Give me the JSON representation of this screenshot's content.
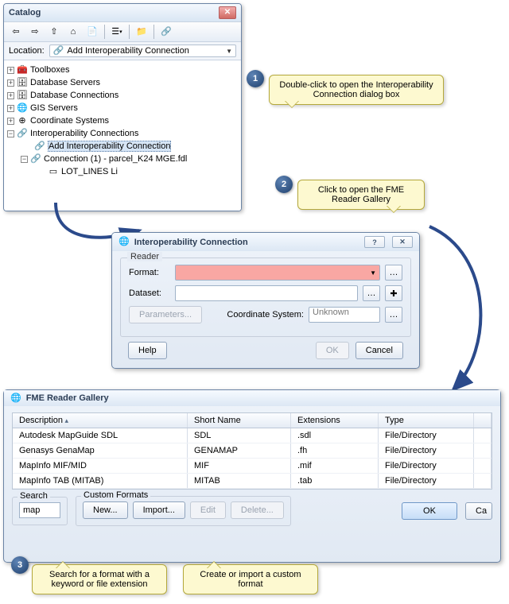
{
  "catalog": {
    "title": "Catalog",
    "location_label": "Location:",
    "location_value": "Add Interoperability Connection",
    "tree": [
      {
        "toggle": "+",
        "icon": "🧰",
        "label": "Toolboxes",
        "indent": 0
      },
      {
        "toggle": "+",
        "icon": "🗄",
        "label": "Database Servers",
        "indent": 0
      },
      {
        "toggle": "+",
        "icon": "🗄",
        "label": "Database Connections",
        "indent": 0
      },
      {
        "toggle": "+",
        "icon": "🌐",
        "label": "GIS Servers",
        "indent": 0
      },
      {
        "toggle": "+",
        "icon": "⊕",
        "label": "Coordinate Systems",
        "indent": 0
      },
      {
        "toggle": "−",
        "icon": "🔗",
        "label": "Interoperability Connections",
        "indent": 0
      },
      {
        "toggle": "",
        "icon": "🔗",
        "label": "Add Interoperability Connection",
        "indent": 1,
        "selected": true
      },
      {
        "toggle": "−",
        "icon": "🔗",
        "label": "Connection (1) - parcel_K24 MGE.fdl",
        "indent": 1
      },
      {
        "toggle": "",
        "icon": "▭",
        "label": "LOT_LINES Li",
        "indent": 2
      }
    ]
  },
  "callouts": {
    "c1": "Double-click to open the Interoperability Connection dialog box",
    "c2": "Click to open the FME Reader Gallery",
    "c3": "Search for a format with a keyword or file extension",
    "c4": "Create or import a custom format"
  },
  "interop": {
    "title": "Interoperability Connection",
    "group": "Reader",
    "format_label": "Format:",
    "dataset_label": "Dataset:",
    "params_btn": "Parameters...",
    "coord_label": "Coordinate System:",
    "coord_value": "Unknown",
    "help": "Help",
    "ok": "OK",
    "cancel": "Cancel"
  },
  "fme": {
    "title": "FME Reader Gallery",
    "columns": [
      "Description",
      "Short Name",
      "Extensions",
      "Type"
    ],
    "rows": [
      [
        "Autodesk MapGuide SDL",
        "SDL",
        ".sdl",
        "File/Directory"
      ],
      [
        "Genasys GenaMap",
        "GENAMAP",
        ".fh",
        "File/Directory"
      ],
      [
        "MapInfo MIF/MID",
        "MIF",
        ".mif",
        "File/Directory"
      ],
      [
        "MapInfo TAB (MITAB)",
        "MITAB",
        ".tab",
        "File/Directory"
      ]
    ],
    "search_label": "Search",
    "search_value": "map",
    "custom_label": "Custom Formats",
    "new_btn": "New...",
    "import_btn": "Import...",
    "edit_btn": "Edit",
    "delete_btn": "Delete...",
    "ok": "OK",
    "cancel": "Ca"
  },
  "colors": {
    "arrow": "#2b4a8b"
  }
}
